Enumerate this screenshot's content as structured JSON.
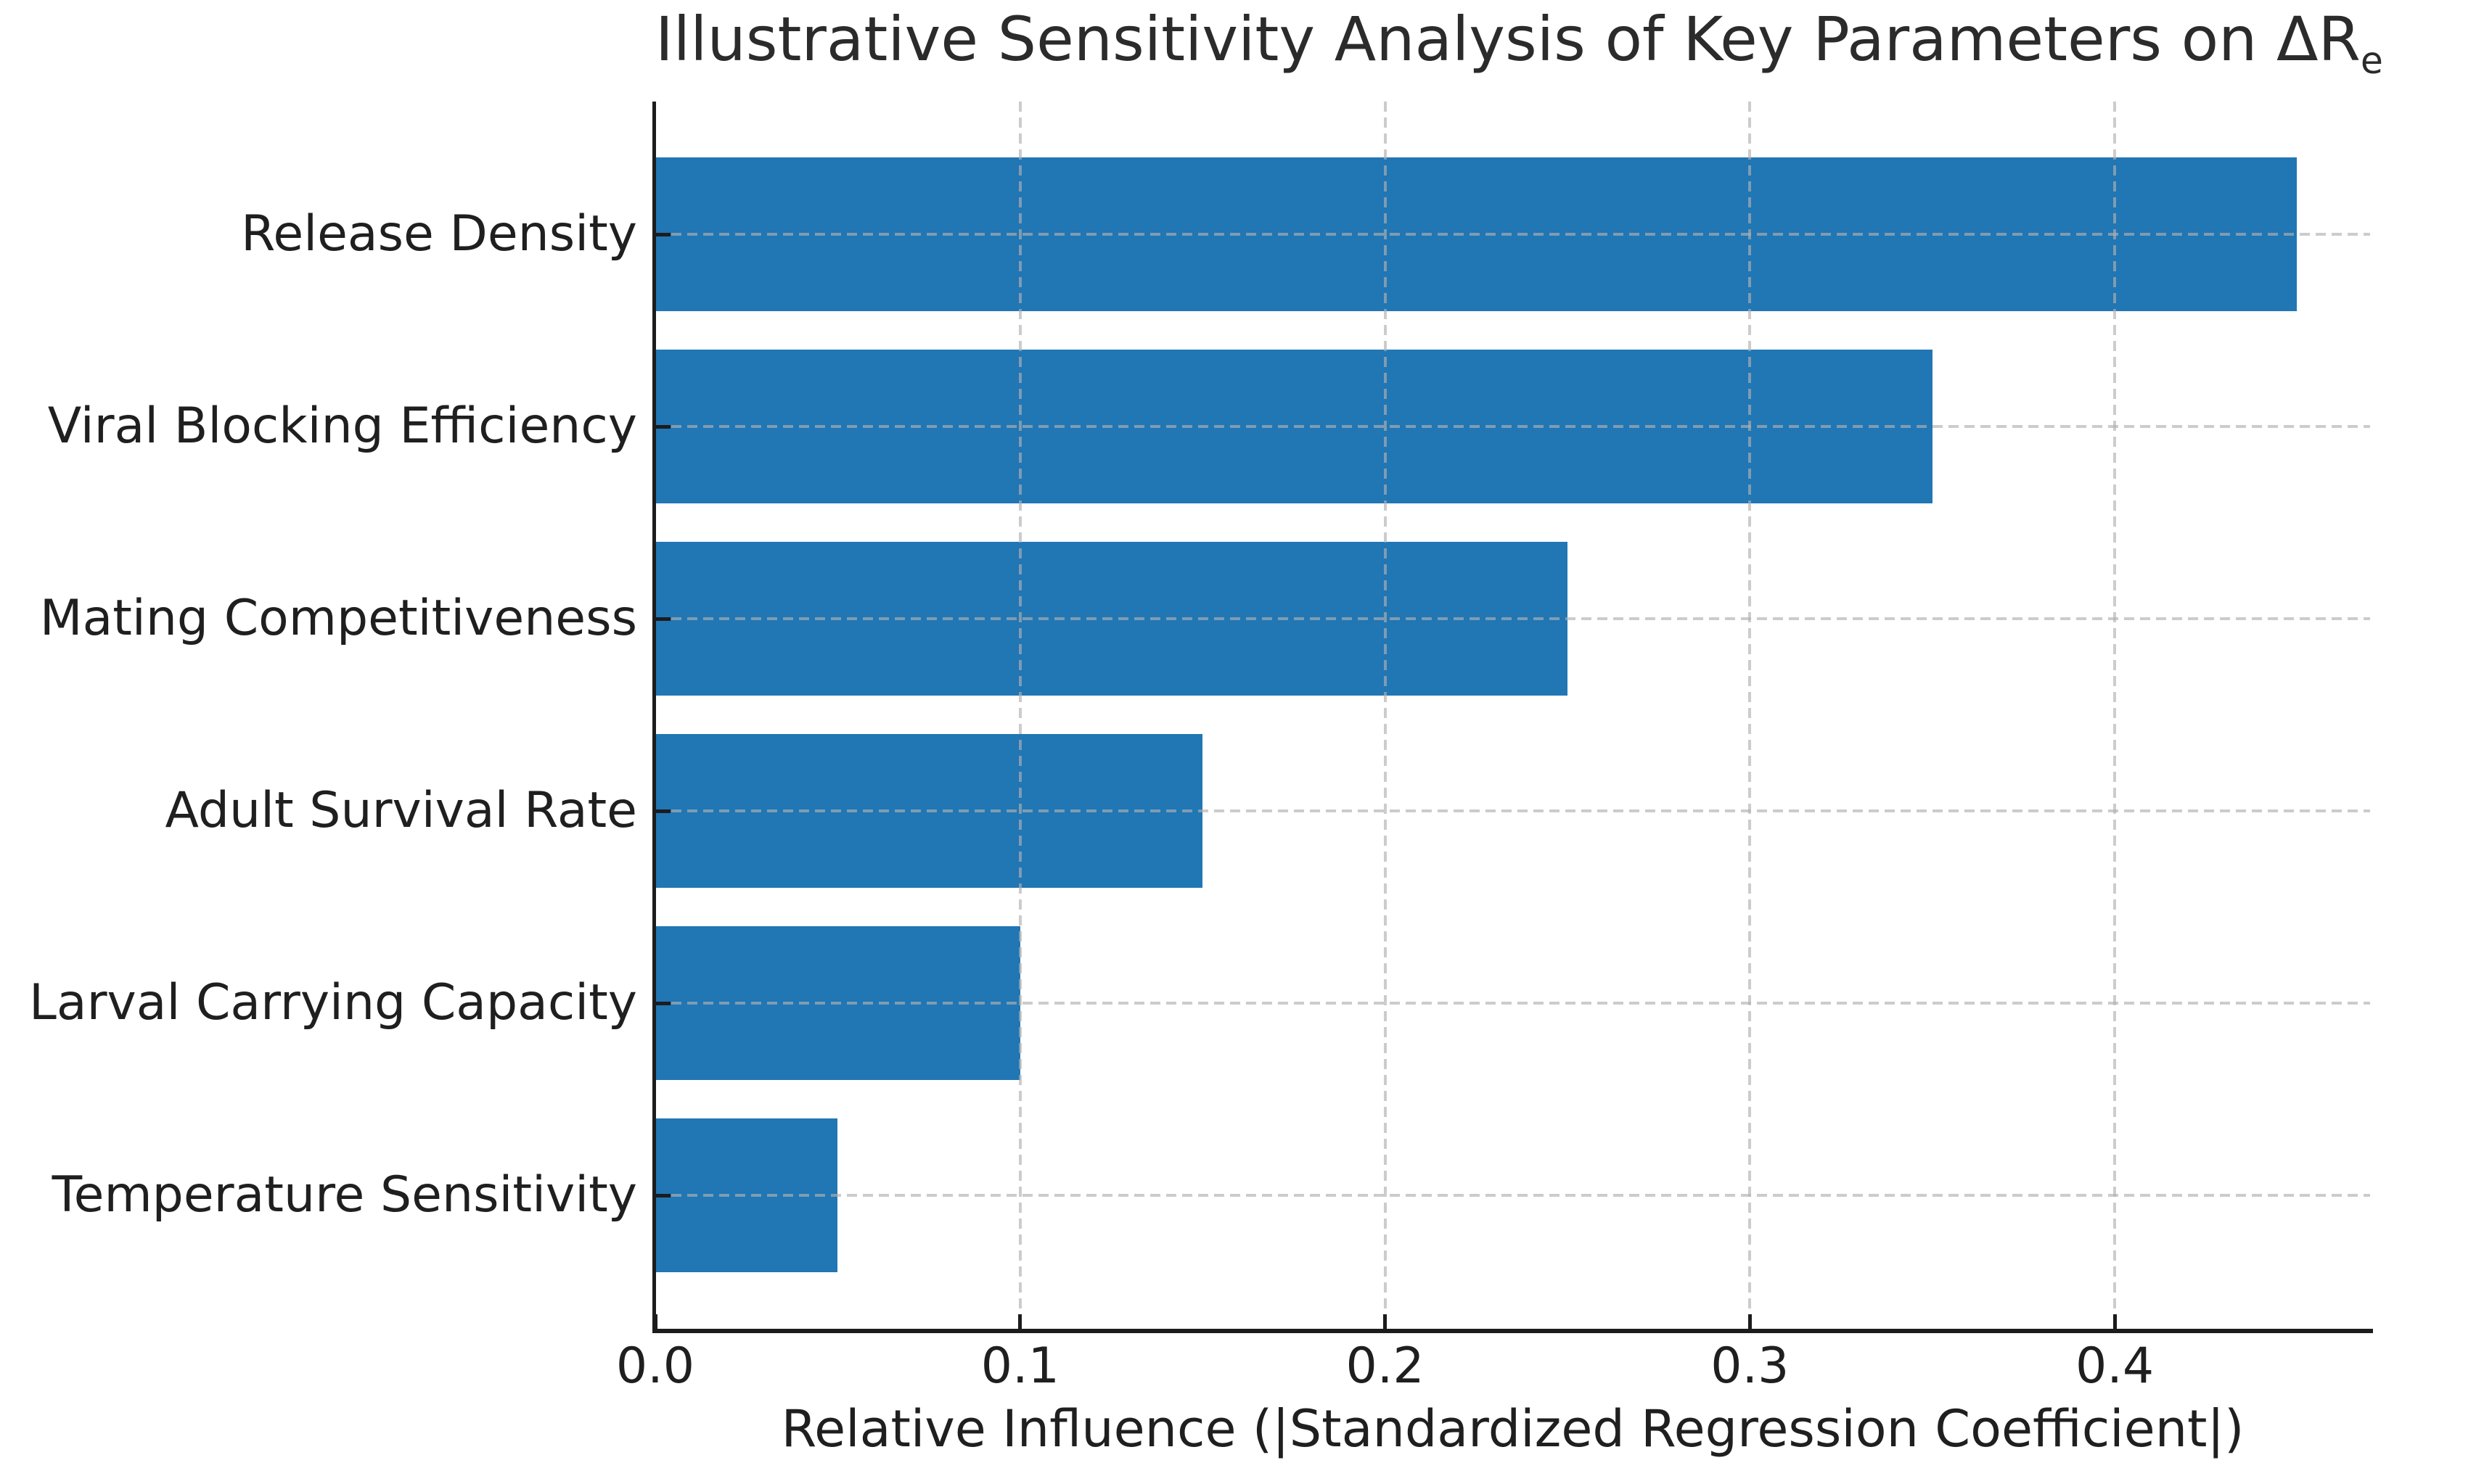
{
  "chart_data": {
    "type": "bar",
    "orientation": "horizontal",
    "title": {
      "text": "Illustrative Sensitivity Analysis of Key Parameters on ΔR",
      "subscript": "e"
    },
    "xlabel": "Relative Influence (|Standardized Regression Coefficient|)",
    "categories": [
      "Release Density",
      "Viral Blocking Efficiency",
      "Mating Competitiveness",
      "Adult Survival Rate",
      "Larval Carrying Capacity",
      "Temperature Sensitivity"
    ],
    "values": [
      0.45,
      0.35,
      0.25,
      0.15,
      0.1,
      0.05
    ],
    "xticks": {
      "values": [
        0.0,
        0.1,
        0.2,
        0.3,
        0.4
      ],
      "labels": [
        "0.0",
        "0.1",
        "0.2",
        "0.3",
        "0.4"
      ]
    },
    "xlim": [
      0,
      0.47
    ],
    "grid": {
      "axes": "both",
      "style": "dashed",
      "color": "#b0b0b0"
    },
    "legend": null,
    "colors": {
      "bar": "#2176b4",
      "spine": "#1c1c1c",
      "text": "#1f1f1f",
      "background": "#ffffff"
    }
  }
}
